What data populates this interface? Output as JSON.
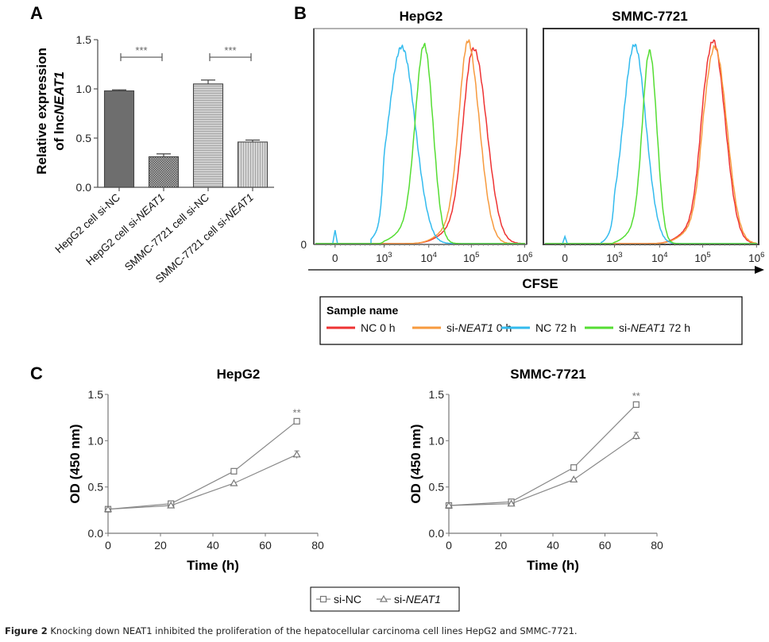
{
  "figure": {
    "caption_label": "Figure 2",
    "caption_text": " Knocking down NEAT1 inhibited the proliferation of the hepatocellular carcinoma cell lines HepG2 and SMMC-7721."
  },
  "chart_data": [
    {
      "panel": "A",
      "type": "bar",
      "title": "",
      "ylabel_line1": "Relative expression",
      "ylabel_line2_prefix": "of lnc",
      "ylabel_line2_italic": "NEAT1",
      "ylim": [
        0,
        1.5
      ],
      "yticks": [
        "0.0",
        "0.5",
        "1.0",
        "1.5"
      ],
      "categories": [
        {
          "prefix": "HepG2 cell si-",
          "italic": "",
          "suffix": "NC"
        },
        {
          "prefix": "HepG2 cell si-",
          "italic": "NEAT1",
          "suffix": ""
        },
        {
          "prefix": "SMMC-7721 cell si-",
          "italic": "",
          "suffix": "NC"
        },
        {
          "prefix": "SMMC-7721 cell si-",
          "italic": "NEAT1",
          "suffix": ""
        }
      ],
      "values": [
        0.98,
        0.31,
        1.05,
        0.46
      ],
      "errors": [
        0.01,
        0.03,
        0.04,
        0.02
      ],
      "fills": [
        "#6e6e6e",
        "checker",
        "hstripe",
        "vstripe"
      ],
      "significance": [
        {
          "from": 0,
          "to": 1,
          "label": "***",
          "y": 1.33
        },
        {
          "from": 2,
          "to": 3,
          "label": "***",
          "y": 1.33
        }
      ]
    },
    {
      "panel": "B",
      "type": "line",
      "subtype": "flow-cytometry-histogram",
      "xlabel": "CFSE",
      "ylabel_tick": "0",
      "xticks": [
        "0",
        "10^3",
        "10^4",
        "10^5",
        "10^6"
      ],
      "xscale": "biexponential",
      "panels": [
        {
          "title": "HepG2",
          "series": [
            {
              "name": "NC 0 h",
              "color": "#ee3333",
              "peak_log": 5.05,
              "width": 0.24,
              "height": 0.96
            },
            {
              "name": "si-NEAT1 0 h",
              "color": "#f79a3e",
              "peak_log": 4.93,
              "width": 0.22,
              "height": 1.0
            },
            {
              "name": "NC 72 h",
              "color": "#33bbee",
              "peak_log": 3.4,
              "width": 0.3,
              "height": 0.97
            },
            {
              "name": "si-NEAT1 72 h",
              "color": "#55dd33",
              "peak_log": 3.9,
              "width": 0.2,
              "height": 0.98
            }
          ]
        },
        {
          "title": "SMMC-7721",
          "series": [
            {
              "name": "NC 0 h",
              "color": "#ee3333",
              "peak_log": 5.2,
              "width": 0.22,
              "height": 1.0
            },
            {
              "name": "si-NEAT1 0 h",
              "color": "#f79a3e",
              "peak_log": 5.23,
              "width": 0.22,
              "height": 0.97
            },
            {
              "name": "NC 72 h",
              "color": "#33bbee",
              "peak_log": 3.45,
              "width": 0.25,
              "height": 0.98
            },
            {
              "name": "si-NEAT1 72 h",
              "color": "#55dd33",
              "peak_log": 3.78,
              "width": 0.16,
              "height": 0.95
            }
          ]
        }
      ],
      "legend": {
        "title": "Sample name",
        "entries": [
          {
            "prefix": "NC 0 h",
            "italic": "",
            "suffix": "",
            "color": "#ee3333"
          },
          {
            "prefix": "si-",
            "italic": "NEAT1",
            "suffix": " 0 h",
            "color": "#f79a3e"
          },
          {
            "prefix": "NC 72 h",
            "italic": "",
            "suffix": "",
            "color": "#33bbee"
          },
          {
            "prefix": "si-",
            "italic": "NEAT1",
            "suffix": " 72 h",
            "color": "#55dd33"
          }
        ]
      }
    },
    {
      "panel": "C",
      "type": "line",
      "title": "HepG2",
      "xlabel": "Time (h)",
      "ylabel": "OD (450 nm)",
      "xlim": [
        0,
        80
      ],
      "ylim": [
        0,
        1.5
      ],
      "xticks": [
        "0",
        "20",
        "40",
        "60",
        "80"
      ],
      "yticks": [
        "0.0",
        "0.5",
        "1.0",
        "1.5"
      ],
      "x": [
        0,
        24,
        48,
        72
      ],
      "series": [
        {
          "name": "si-NC",
          "marker": "square",
          "values": [
            0.26,
            0.32,
            0.67,
            1.21
          ],
          "errors": [
            0.01,
            0.01,
            0.01,
            0.02
          ]
        },
        {
          "name": "si-NEAT1",
          "marker": "triangle",
          "values": [
            0.26,
            0.3,
            0.54,
            0.85
          ],
          "errors": [
            0.01,
            0.01,
            0.01,
            0.04
          ]
        }
      ],
      "annotation": {
        "x": 72,
        "y": 1.3,
        "label": "**"
      }
    },
    {
      "panel": "C",
      "type": "line",
      "title": "SMMC-7721",
      "xlabel": "Time (h)",
      "ylabel": "OD (450 nm)",
      "xlim": [
        0,
        80
      ],
      "ylim": [
        0,
        1.5
      ],
      "xticks": [
        "0",
        "20",
        "40",
        "60",
        "80"
      ],
      "yticks": [
        "0.0",
        "0.5",
        "1.0",
        "1.5"
      ],
      "x": [
        0,
        24,
        48,
        72
      ],
      "series": [
        {
          "name": "si-NC",
          "marker": "square",
          "values": [
            0.3,
            0.34,
            0.71,
            1.39
          ],
          "errors": [
            0.01,
            0.01,
            0.01,
            0.02
          ]
        },
        {
          "name": "si-NEAT1",
          "marker": "triangle",
          "values": [
            0.3,
            0.32,
            0.58,
            1.05
          ],
          "errors": [
            0.01,
            0.01,
            0.01,
            0.04
          ]
        }
      ],
      "annotation": {
        "x": 72,
        "y": 1.48,
        "label": "**"
      }
    }
  ],
  "panel_labels": [
    "A",
    "B",
    "C"
  ],
  "c_legend": {
    "entries": [
      {
        "prefix": "si-NC",
        "italic": "",
        "marker": "square"
      },
      {
        "prefix": "si-",
        "italic": "NEAT1",
        "marker": "triangle"
      }
    ]
  }
}
